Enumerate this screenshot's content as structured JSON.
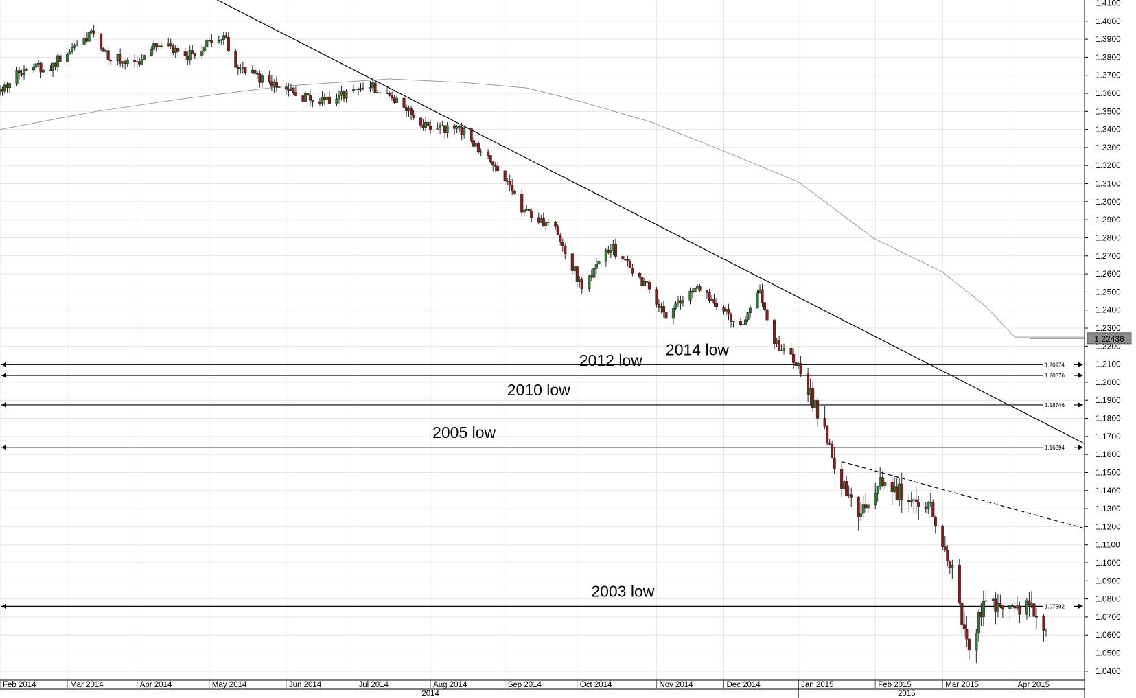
{
  "chart_data": {
    "type": "candlestick",
    "y_axis": {
      "range": [
        1.035,
        1.4117
      ],
      "ticks": [
        "1.4100",
        "1.4000",
        "1.3900",
        "1.3800",
        "1.3700",
        "1.3600",
        "1.3500",
        "1.3400",
        "1.3300",
        "1.3200",
        "1.3100",
        "1.3000",
        "1.2900",
        "1.2800",
        "1.2700",
        "1.2600",
        "1.2500",
        "1.2400",
        "1.2300",
        "1.2200",
        "1.2100",
        "1.2000",
        "1.1900",
        "1.1800",
        "1.1700",
        "1.1600",
        "1.1500",
        "1.1400",
        "1.1300",
        "1.1200",
        "1.1100",
        "1.1000",
        "1.0900",
        "1.0800",
        "1.0700",
        "1.0600",
        "1.0500",
        "1.0400"
      ],
      "position": "right"
    },
    "x_axis": {
      "range": [
        "2014-02-03",
        "2015-04-30"
      ],
      "month_labels": [
        {
          "date": "2014-02-03",
          "label": "Feb 2014"
        },
        {
          "date": "2014-03-03",
          "label": "Mar 2014"
        },
        {
          "date": "2014-04-01",
          "label": "Apr 2014"
        },
        {
          "date": "2014-05-01",
          "label": "May 2014"
        },
        {
          "date": "2014-06-02",
          "label": "Jun 2014"
        },
        {
          "date": "2014-07-01",
          "label": "Jul 2014"
        },
        {
          "date": "2014-08-01",
          "label": "Aug 2014"
        },
        {
          "date": "2014-09-01",
          "label": "Sep 2014"
        },
        {
          "date": "2014-10-01",
          "label": "Oct 2014"
        },
        {
          "date": "2014-11-03",
          "label": "Nov 2014"
        },
        {
          "date": "2014-12-01",
          "label": "Dec 2014"
        },
        {
          "date": "2015-01-01",
          "label": "Jan 2015"
        },
        {
          "date": "2015-02-02",
          "label": "Feb 2015"
        },
        {
          "date": "2015-03-02",
          "label": "Mar 2015"
        },
        {
          "date": "2015-04-01",
          "label": "Apr 2015"
        }
      ],
      "year_labels": [
        {
          "date": "2014-08-01",
          "label": "2014"
        },
        {
          "date": "2015-02-15",
          "label": "2015"
        }
      ],
      "year_divider": "2015-01-01"
    },
    "grid": true,
    "current_price": {
      "value": 1.22436,
      "label": "1.22436"
    },
    "candle_keypoints": [
      [
        "2014-02-03",
        1.36
      ],
      [
        "2014-02-10",
        1.372
      ],
      [
        "2014-02-24",
        1.375
      ],
      [
        "2014-03-07",
        1.388
      ],
      [
        "2014-03-13",
        1.393
      ],
      [
        "2014-03-20",
        1.381
      ],
      [
        "2014-04-01",
        1.377
      ],
      [
        "2014-04-10",
        1.388
      ],
      [
        "2014-04-22",
        1.381
      ],
      [
        "2014-05-07",
        1.392
      ],
      [
        "2014-05-12",
        1.375
      ],
      [
        "2014-05-22",
        1.368
      ],
      [
        "2014-06-05",
        1.36
      ],
      [
        "2014-06-16",
        1.355
      ],
      [
        "2014-07-07",
        1.364
      ],
      [
        "2014-07-15",
        1.358
      ],
      [
        "2014-08-01",
        1.34
      ],
      [
        "2014-08-15",
        1.339
      ],
      [
        "2014-09-01",
        1.313
      ],
      [
        "2014-09-08",
        1.295
      ],
      [
        "2014-09-23",
        1.283
      ],
      [
        "2014-10-03",
        1.252
      ],
      [
        "2014-10-15",
        1.275
      ],
      [
        "2014-10-31",
        1.252
      ],
      [
        "2014-11-07",
        1.238
      ],
      [
        "2014-11-20",
        1.254
      ],
      [
        "2014-12-08",
        1.23
      ],
      [
        "2014-12-16",
        1.25
      ],
      [
        "2014-12-22",
        1.222
      ],
      [
        "2015-01-01",
        1.21
      ],
      [
        "2015-01-05",
        1.194
      ],
      [
        "2015-01-16",
        1.157
      ],
      [
        "2015-01-22",
        1.136
      ],
      [
        "2015-01-26",
        1.122
      ],
      [
        "2015-02-06",
        1.146
      ],
      [
        "2015-02-16",
        1.135
      ],
      [
        "2015-02-26",
        1.13
      ],
      [
        "2015-03-06",
        1.098
      ],
      [
        "2015-03-13",
        1.05
      ],
      [
        "2015-03-20",
        1.08
      ],
      [
        "2015-04-01",
        1.076
      ],
      [
        "2015-04-08",
        1.078
      ],
      [
        "2015-04-14",
        1.06
      ]
    ],
    "moving_average": [
      [
        "2014-02-03",
        1.34
      ],
      [
        "2014-03-15",
        1.35
      ],
      [
        "2014-04-20",
        1.357
      ],
      [
        "2014-06-01",
        1.364
      ],
      [
        "2014-07-15",
        1.368
      ],
      [
        "2014-08-15",
        1.366
      ],
      [
        "2014-09-10",
        1.363
      ],
      [
        "2014-10-01",
        1.356
      ],
      [
        "2014-11-01",
        1.344
      ],
      [
        "2014-12-01",
        1.328
      ],
      [
        "2015-01-01",
        1.311
      ],
      [
        "2015-02-01",
        1.28
      ],
      [
        "2015-03-02",
        1.261
      ],
      [
        "2015-03-20",
        1.242
      ],
      [
        "2015-04-01",
        1.225
      ],
      [
        "2015-04-30",
        1.225
      ]
    ],
    "trendlines": [
      {
        "style": "solid",
        "points": [
          [
            "2014-05-01",
            1.414
          ],
          [
            "2015-04-30",
            1.166
          ]
        ]
      },
      {
        "style": "dashed",
        "points": [
          [
            "2015-01-19",
            1.156
          ],
          [
            "2015-04-30",
            1.119
          ]
        ]
      }
    ],
    "levels": [
      {
        "value": 1.20974,
        "label": "1.20974",
        "annotation": "2014 low",
        "annotation_at": "2014-11-20"
      },
      {
        "value": 1.20376,
        "label": "1.20376",
        "annotation": "2012 low",
        "annotation_at": "2014-10-15"
      },
      {
        "value": 1.18746,
        "label": "1.18746",
        "annotation": "2010 low",
        "annotation_at": "2014-09-15"
      },
      {
        "value": 1.16394,
        "label": "1.16394",
        "annotation": "2005 low",
        "annotation_at": "2014-08-15"
      },
      {
        "value": 1.07592,
        "label": "1.07592",
        "annotation": "2003 low",
        "annotation_at": "2014-10-20"
      }
    ],
    "colors": {
      "bull": "#2e7d32",
      "bear": "#8b1a1a",
      "grid": "#e4e4e4",
      "moving_average": "#9a9a9a",
      "price_box": "#8c8c8c"
    }
  }
}
